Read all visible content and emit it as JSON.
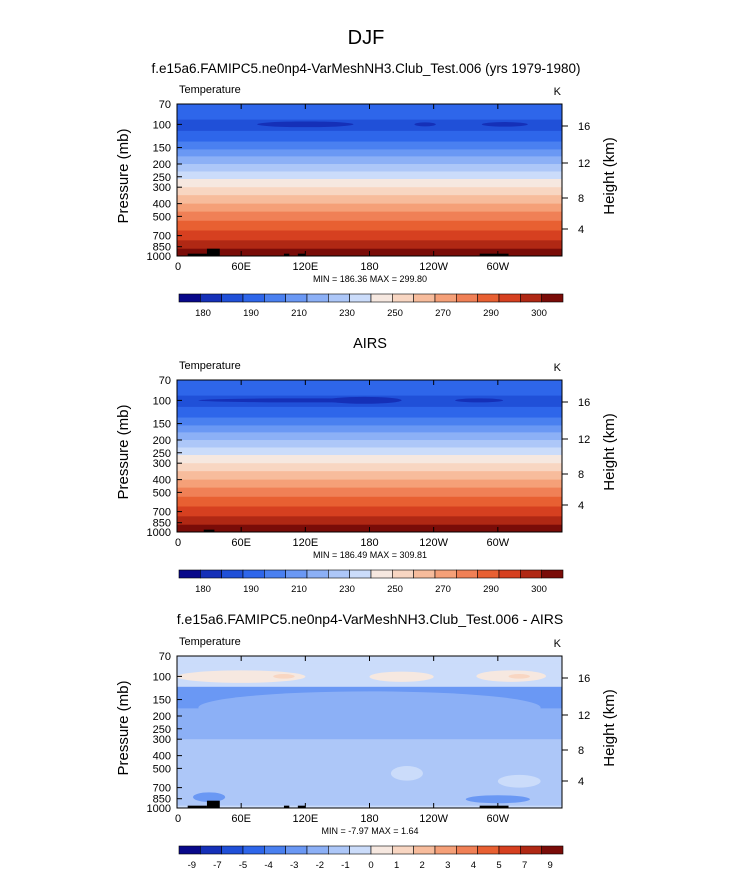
{
  "figure": {
    "title": "DJF",
    "subtitle": "f.e15a6.FAMIPC5.ne0np4-VarMeshNH3.Club_Test.006 (yrs 1979-1980)"
  },
  "chart_data": [
    {
      "type": "heatmap",
      "panel_title": "",
      "variable": "Temperature",
      "units": "K",
      "ylabel": "Pressure (mb)",
      "ylabel_right": "Height (km)",
      "stats": "MIN = 186.36  MAX = 299.80",
      "x_ticks": [
        "0",
        "60E",
        "120E",
        "180",
        "120W",
        "60W"
      ],
      "y_ticks": [
        "70",
        "100",
        "150",
        "200",
        "250",
        "300",
        "400",
        "500",
        "700",
        "850",
        "1000"
      ],
      "height_ticks": [
        "16",
        "12",
        "8",
        "4"
      ],
      "colorbar_labels": [
        "180",
        "190",
        "210",
        "230",
        "250",
        "270",
        "290",
        "300"
      ],
      "palette": [
        "#08088a",
        "#1530b8",
        "#2050d8",
        "#2e66ea",
        "#4a80f0",
        "#6a98f4",
        "#8cb0f6",
        "#adc7f8",
        "#cbdcfa",
        "#f6e8e0",
        "#f8d6c2",
        "#f7bc9c",
        "#f5a078",
        "#f08056",
        "#e86032",
        "#d64020",
        "#b02814",
        "#7a0c08"
      ],
      "xlim": [
        0,
        360
      ],
      "plim": [
        70,
        1000
      ],
      "cold_cores": [
        {
          "lon": [
            75,
            165
          ],
          "p": [
            95,
            105
          ]
        },
        {
          "lon": [
            222,
            242
          ],
          "p": [
            97,
            103
          ]
        },
        {
          "lon": [
            285,
            328
          ],
          "p": [
            96,
            104
          ]
        }
      ],
      "topography": [
        {
          "lon": [
            10,
            28
          ],
          "p": 960
        },
        {
          "lon": [
            28,
            40
          ],
          "p": 880
        },
        {
          "lon": [
            100,
            105
          ],
          "p": 960
        },
        {
          "lon": [
            113,
            120
          ],
          "p": 960
        },
        {
          "lon": [
            283,
            310
          ],
          "p": 960
        }
      ]
    },
    {
      "type": "heatmap",
      "panel_title": "AIRS",
      "variable": "Temperature",
      "units": "K",
      "ylabel": "Pressure (mb)",
      "ylabel_right": "Height (km)",
      "stats": "MIN = 186.49  MAX = 309.81",
      "x_ticks": [
        "0",
        "60E",
        "120E",
        "180",
        "120W",
        "60W"
      ],
      "y_ticks": [
        "70",
        "100",
        "150",
        "200",
        "250",
        "300",
        "400",
        "500",
        "700",
        "850",
        "1000"
      ],
      "height_ticks": [
        "16",
        "12",
        "8",
        "4"
      ],
      "colorbar_labels": [
        "180",
        "190",
        "210",
        "230",
        "250",
        "270",
        "290",
        "300"
      ],
      "palette": [
        "#08088a",
        "#1530b8",
        "#2050d8",
        "#2e66ea",
        "#4a80f0",
        "#6a98f4",
        "#8cb0f6",
        "#adc7f8",
        "#cbdcfa",
        "#f6e8e0",
        "#f8d6c2",
        "#f7bc9c",
        "#f5a078",
        "#f08056",
        "#e86032",
        "#d64020",
        "#b02814",
        "#7a0c08"
      ],
      "xlim": [
        0,
        360
      ],
      "plim": [
        70,
        1000
      ],
      "cold_cores": [
        {
          "lon": [
            20,
            210
          ],
          "p": [
            97,
            103
          ]
        },
        {
          "lon": [
            140,
            210
          ],
          "p": [
            94,
            106
          ]
        },
        {
          "lon": [
            260,
            305
          ],
          "p": [
            98,
            102
          ]
        }
      ],
      "topography": [
        {
          "lon": [
            25,
            35
          ],
          "p": 960
        }
      ]
    },
    {
      "type": "heatmap",
      "panel_title": "f.e15a6.FAMIPC5.ne0np4-VarMeshNH3.Club_Test.006 - AIRS",
      "variable": "Temperature",
      "units": "K",
      "ylabel": "Pressure (mb)",
      "ylabel_right": "Height (km)",
      "stats": "MIN = -7.97  MAX =  1.64",
      "x_ticks": [
        "0",
        "60E",
        "120E",
        "180",
        "120W",
        "60W"
      ],
      "y_ticks": [
        "70",
        "100",
        "150",
        "200",
        "250",
        "300",
        "400",
        "500",
        "700",
        "850",
        "1000"
      ],
      "height_ticks": [
        "16",
        "12",
        "8",
        "4"
      ],
      "colorbar_labels": [
        "-9",
        "-7",
        "-5",
        "-4",
        "-3",
        "-2",
        "-1",
        "0",
        "1",
        "2",
        "3",
        "4",
        "5",
        "7",
        "9"
      ],
      "palette": [
        "#08088a",
        "#1530b8",
        "#2050d8",
        "#2e66ea",
        "#4a80f0",
        "#6a98f4",
        "#8cb0f6",
        "#adc7f8",
        "#cbdcfa",
        "#f6e8e0",
        "#f8d6c2",
        "#f7bc9c",
        "#f5a078",
        "#f08056",
        "#e86032",
        "#d64020",
        "#b02814",
        "#7a0c08"
      ],
      "xlim": [
        0,
        360
      ],
      "plim": [
        70,
        1000
      ],
      "diff_blobs": [
        {
          "lon": [
            0,
            120
          ],
          "p": [
            90,
            112
          ],
          "color": 9
        },
        {
          "lon": [
            180,
            240
          ],
          "p": [
            92,
            110
          ],
          "color": 9
        },
        {
          "lon": [
            280,
            345
          ],
          "p": [
            90,
            110
          ],
          "color": 9
        },
        {
          "lon": [
            90,
            110
          ],
          "p": [
            96,
            104
          ],
          "color": 10
        },
        {
          "lon": [
            310,
            330
          ],
          "p": [
            96,
            104
          ],
          "color": 10
        },
        {
          "lon": [
            20,
            340
          ],
          "p": [
            130,
            230
          ],
          "color": 6
        },
        {
          "lon": [
            200,
            230
          ],
          "p": [
            480,
            620
          ],
          "color": 8
        },
        {
          "lon": [
            300,
            340
          ],
          "p": [
            560,
            700
          ],
          "color": 8
        },
        {
          "lon": [
            15,
            45
          ],
          "p": [
            760,
            900
          ],
          "color": 5
        },
        {
          "lon": [
            270,
            330
          ],
          "p": [
            800,
            920
          ],
          "color": 5
        }
      ],
      "topography": [
        {
          "lon": [
            10,
            28
          ],
          "p": 960
        },
        {
          "lon": [
            28,
            40
          ],
          "p": 880
        },
        {
          "lon": [
            100,
            105
          ],
          "p": 960
        },
        {
          "lon": [
            113,
            120
          ],
          "p": 960
        },
        {
          "lon": [
            283,
            310
          ],
          "p": 960
        }
      ]
    }
  ]
}
